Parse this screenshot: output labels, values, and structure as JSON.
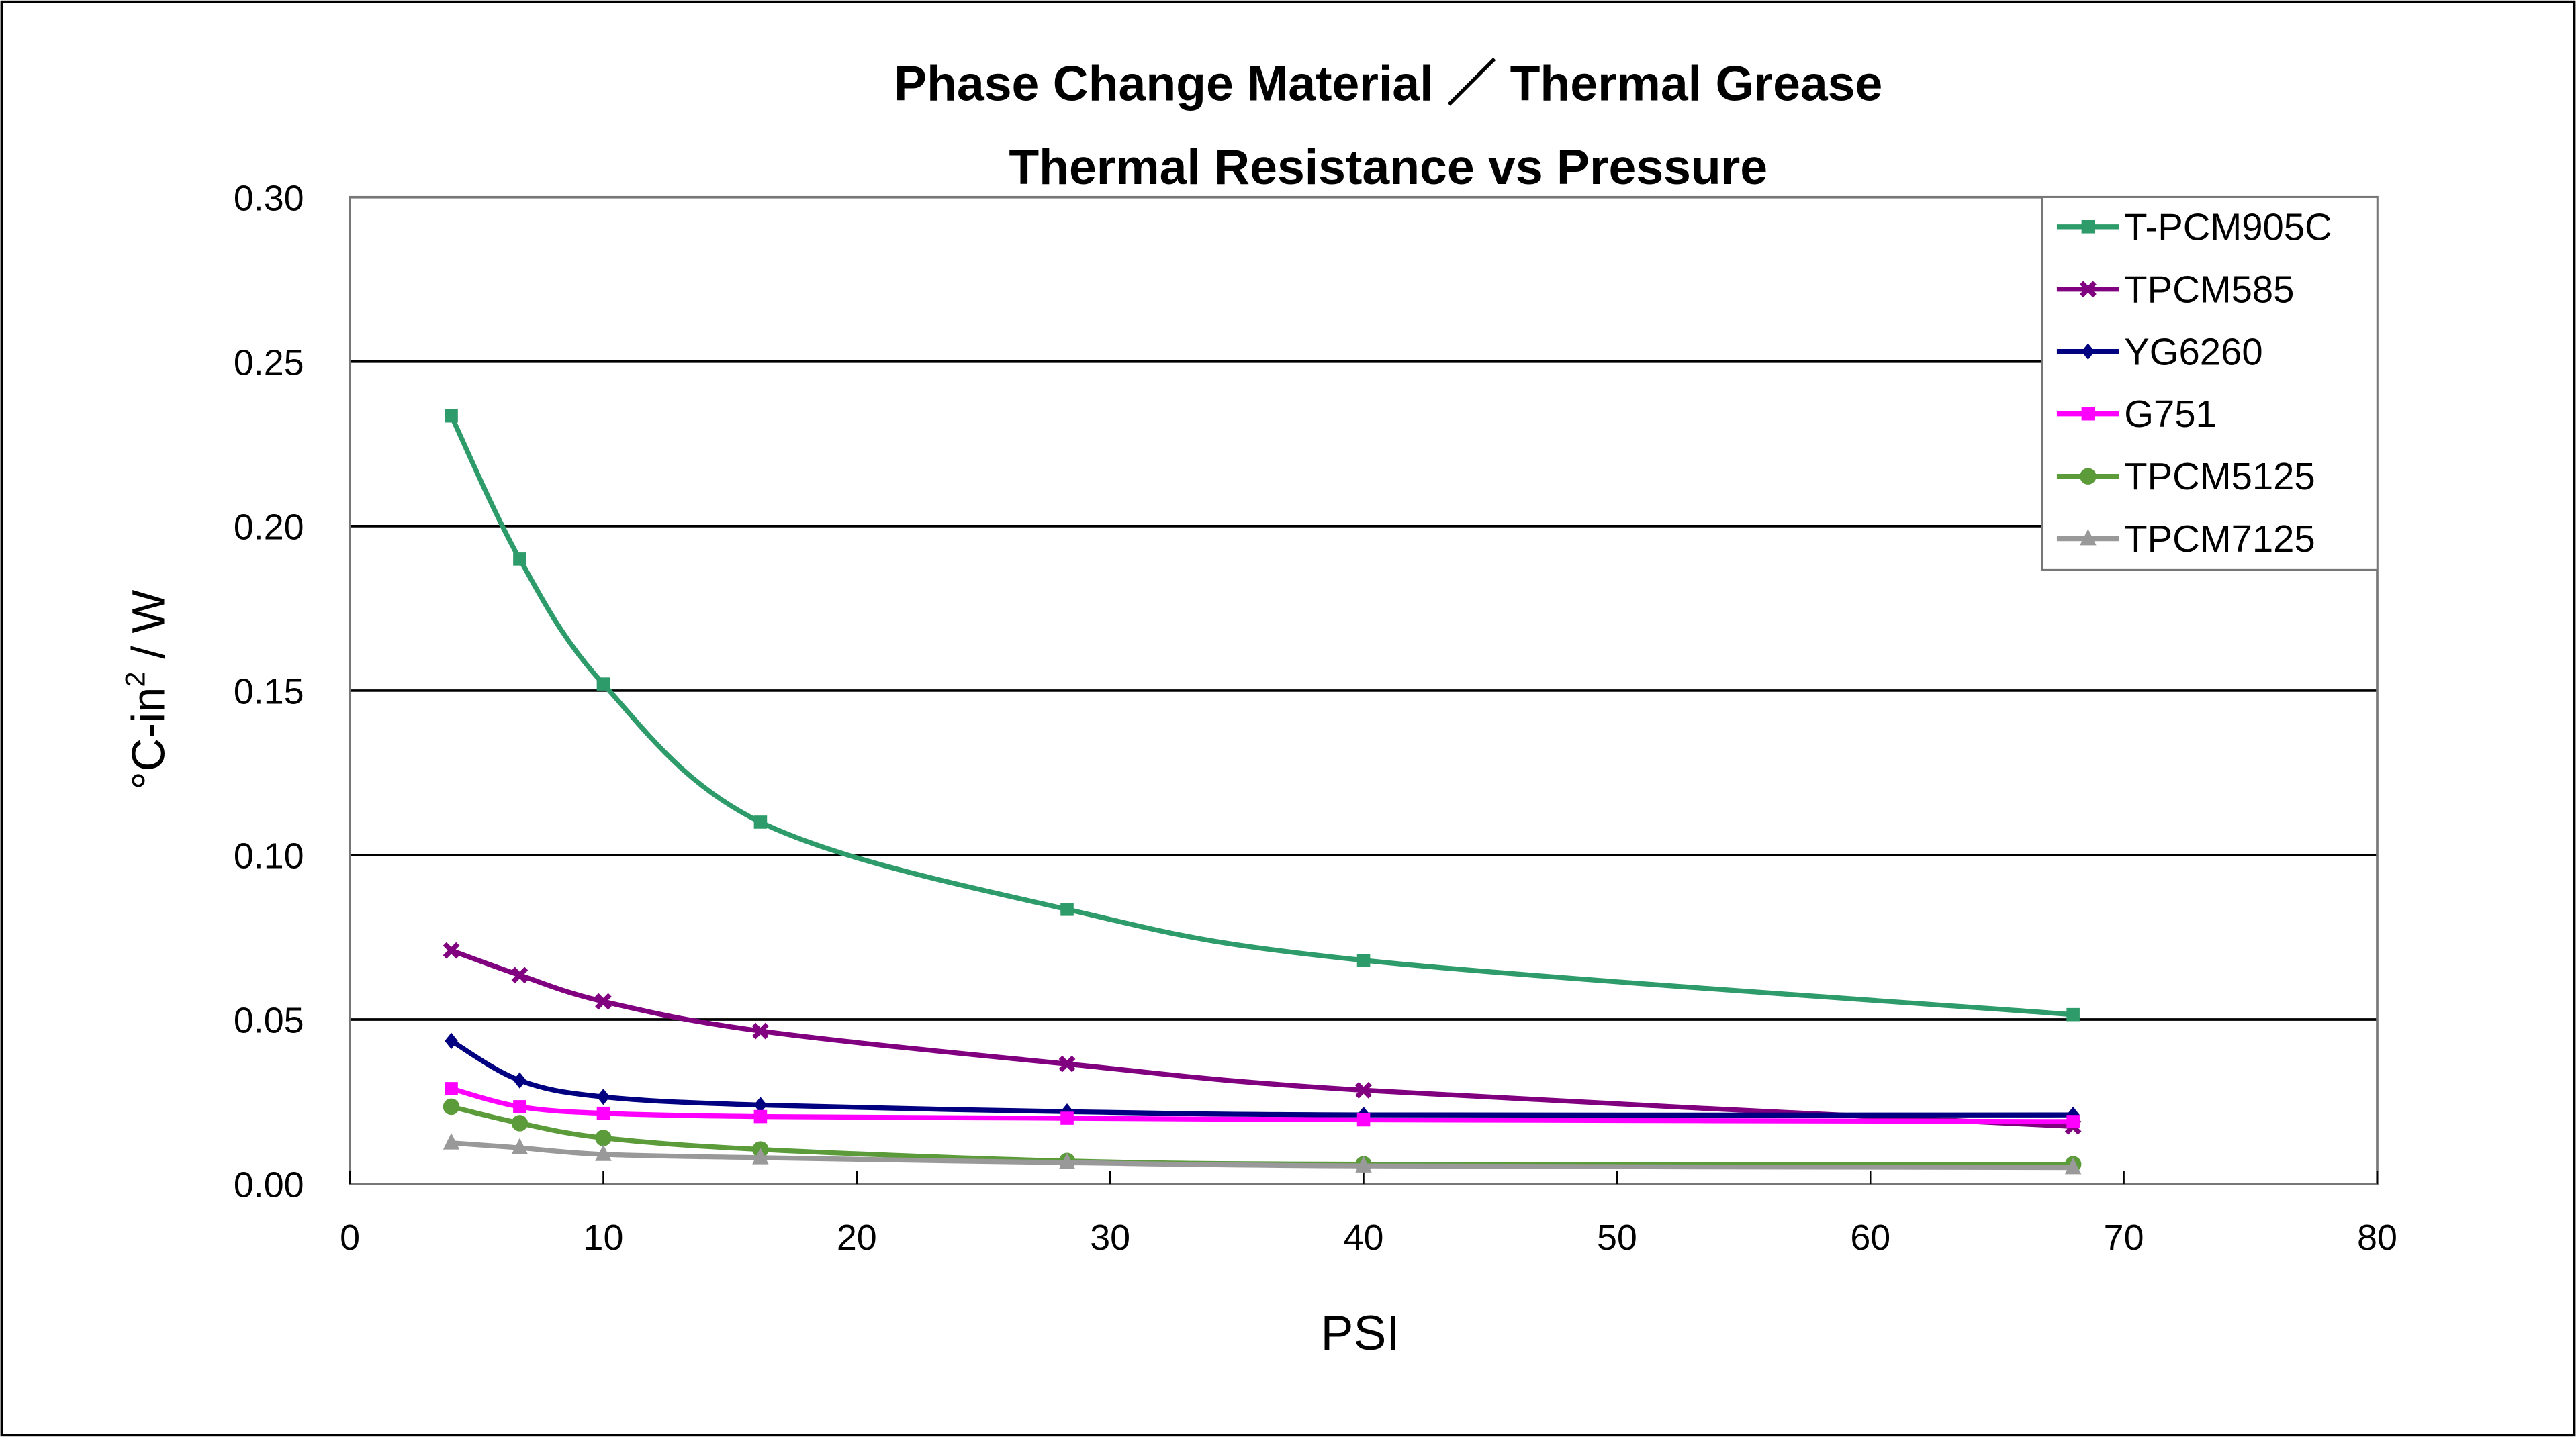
{
  "chart_data": {
    "type": "line",
    "title": [
      "Phase Change Material  ／ Thermal Grease",
      "Thermal Resistance vs Pressure"
    ],
    "xlabel": "PSI",
    "ylabel": {
      "base": "°C-in",
      "sup": "2",
      "tail": " / W"
    },
    "xlim": [
      0,
      80
    ],
    "ylim": [
      0,
      0.3
    ],
    "xticks": [
      0,
      10,
      20,
      30,
      40,
      50,
      60,
      70,
      80
    ],
    "yticks": [
      "0.00",
      "0.05",
      "0.10",
      "0.15",
      "0.20",
      "0.25",
      "0.30"
    ],
    "grid": "horizontal",
    "legend_position": "top-right",
    "smooth": true,
    "x": [
      4,
      6.7,
      10,
      16.2,
      28.3,
      40,
      68
    ],
    "series": [
      {
        "name": "T-PCM905C",
        "color": "#2E9B6A",
        "marker": "square",
        "values": [
          0.2335,
          0.19,
          0.152,
          0.11,
          0.0835,
          0.068,
          0.0515
        ]
      },
      {
        "name": "TPCM585",
        "color": "#800080",
        "marker": "x",
        "values": [
          0.071,
          0.0635,
          0.0555,
          0.0465,
          0.0365,
          0.0285,
          0.0175
        ]
      },
      {
        "name": "YG6260",
        "color": "#000080",
        "marker": "diamond",
        "values": [
          0.0435,
          0.0315,
          0.0265,
          0.024,
          0.022,
          0.021,
          0.021
        ]
      },
      {
        "name": "G751",
        "color": "#FF00FF",
        "marker": "square",
        "values": [
          0.029,
          0.0235,
          0.0215,
          0.0205,
          0.02,
          0.0195,
          0.019
        ]
      },
      {
        "name": "TPCM5125",
        "color": "#5B9B3A",
        "marker": "circle",
        "values": [
          0.0235,
          0.0185,
          0.014,
          0.0105,
          0.007,
          0.006,
          0.006
        ]
      },
      {
        "name": "TPCM7125",
        "color": "#999999",
        "marker": "triangle",
        "values": [
          0.0125,
          0.011,
          0.009,
          0.008,
          0.0065,
          0.0055,
          0.005
        ]
      }
    ]
  }
}
